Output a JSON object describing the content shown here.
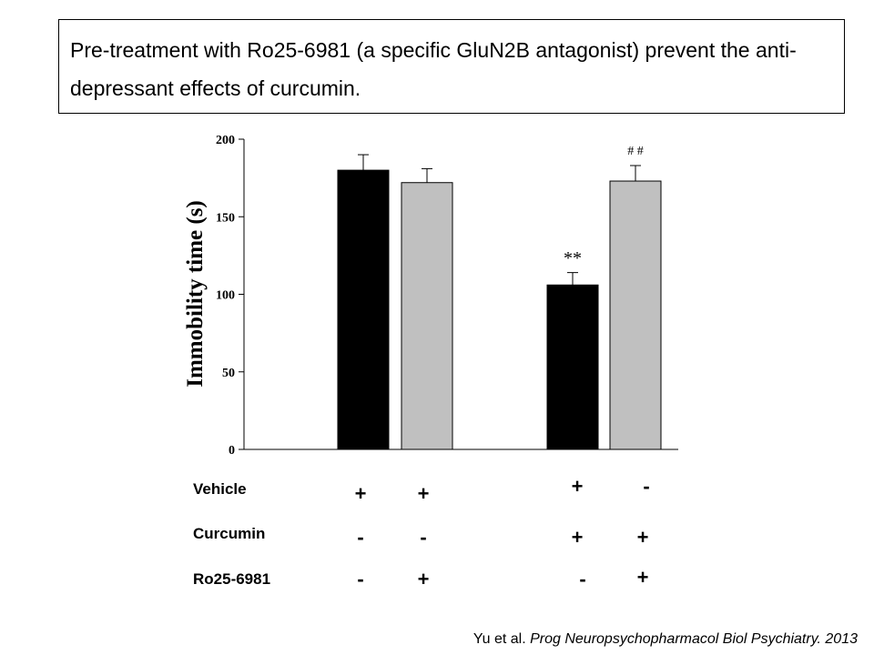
{
  "title": "Pre-treatment with Ro25-6981 (a specific GluN2B antagonist) prevent the anti-depressant effects of curcumin.",
  "treatments": [
    {
      "label": "Vehicle",
      "symbols": [
        "+",
        "+",
        "+",
        "-"
      ]
    },
    {
      "label": "Curcumin",
      "symbols": [
        "-",
        "-",
        "+",
        "+"
      ]
    },
    {
      "label": "Ro25-6981",
      "symbols": [
        "-",
        "+",
        "-",
        "+"
      ]
    }
  ],
  "citation": {
    "authors": "Yu et al.",
    "journal": "Prog Neuropsychopharmacol Biol Psychiatry. 2013"
  },
  "chart_data": {
    "type": "bar",
    "xlabel": "",
    "ylabel": "Immobility time (s)",
    "ylim": [
      0,
      200
    ],
    "yticks": [
      0,
      50,
      100,
      150,
      200
    ],
    "grid": false,
    "bars": [
      {
        "value": 180,
        "error": 10,
        "color": "#000000",
        "annotation": ""
      },
      {
        "value": 172,
        "error": 9,
        "color": "#c0c0c0",
        "annotation": ""
      },
      {
        "value": 106,
        "error": 8,
        "color": "#000000",
        "annotation": "**"
      },
      {
        "value": 173,
        "error": 10,
        "color": "#c0c0c0",
        "annotation": "# #"
      }
    ]
  }
}
